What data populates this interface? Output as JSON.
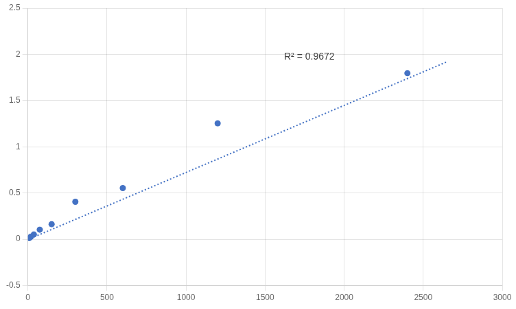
{
  "chart_data": {
    "type": "scatter",
    "series": [
      {
        "x": [
          9.375,
          18.75,
          37.5,
          75,
          150,
          300,
          600,
          1200,
          2400
        ],
        "values": [
          0.013,
          0.027,
          0.052,
          0.104,
          0.163,
          0.405,
          0.554,
          1.254,
          1.797
        ],
        "color": "#4472C4",
        "marker": "circle"
      },
      {
        "type": "line",
        "x": [
          0,
          2650
        ],
        "values": [
          -0.003,
          1.92
        ],
        "color": "#4472C4",
        "line_style": "dotted"
      }
    ],
    "annotations": [
      {
        "text": "R² = 0.9672",
        "x": 1620,
        "y": 1.97
      }
    ],
    "xlim": [
      0,
      3000
    ],
    "ylim": [
      -0.5,
      2.5
    ],
    "xticks": [
      0,
      500,
      1000,
      1500,
      2000,
      2500,
      3000
    ],
    "yticks": [
      -0.5,
      0,
      0.5,
      1,
      1.5,
      2,
      2.5
    ],
    "grid": true
  }
}
